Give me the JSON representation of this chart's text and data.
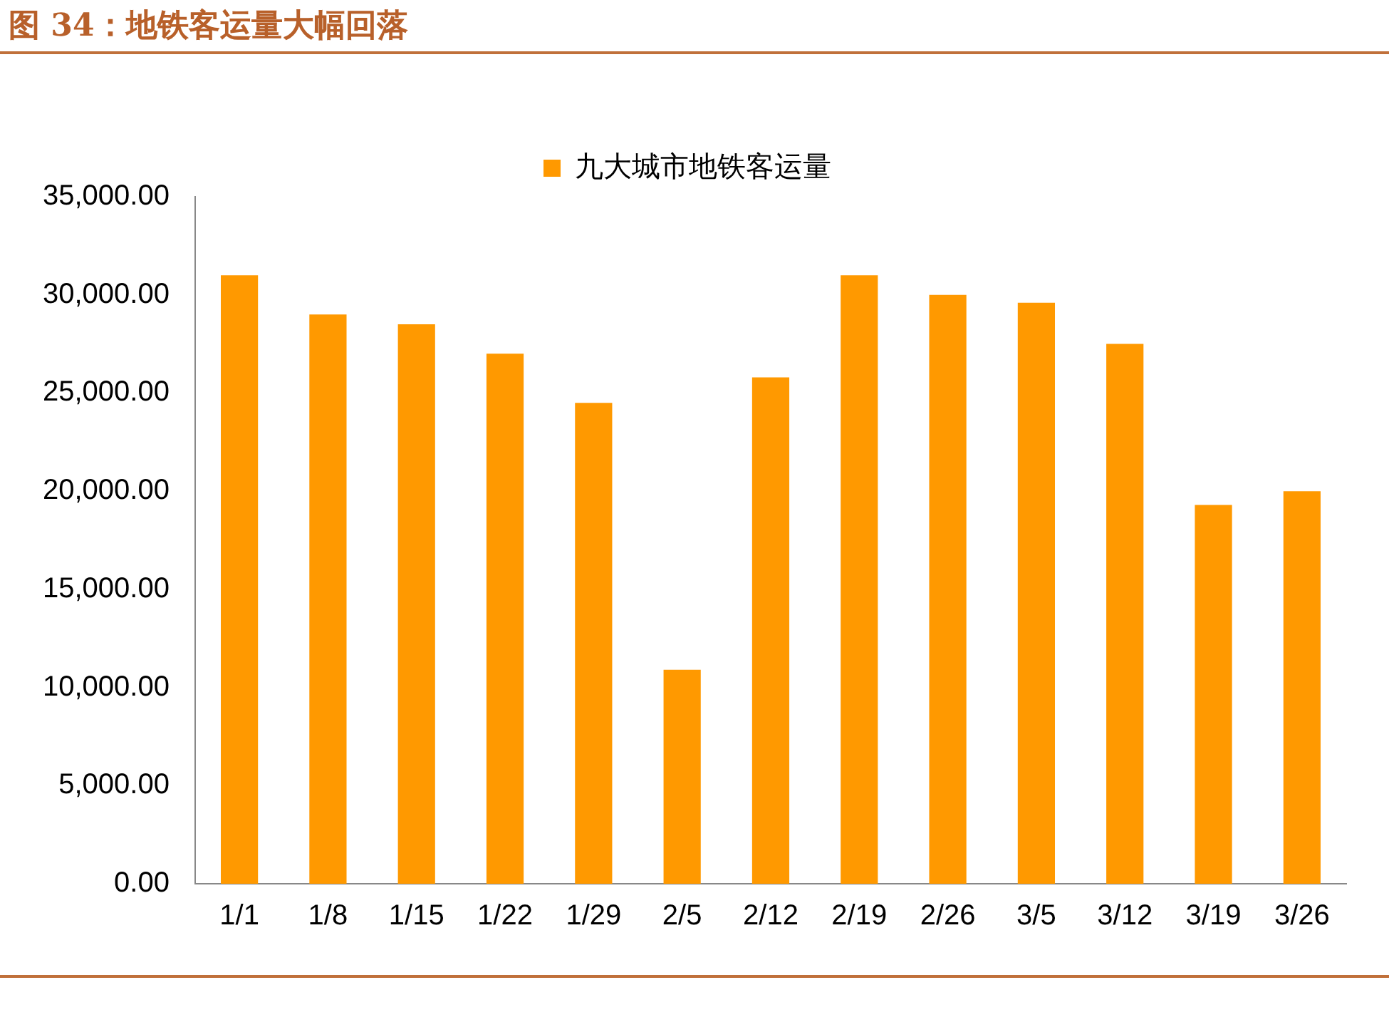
{
  "chart_data": {
    "type": "bar",
    "title": "图 34：地铁客运量大幅回落",
    "categories": [
      "1/1",
      "1/8",
      "1/15",
      "1/22",
      "1/29",
      "2/5",
      "2/12",
      "2/19",
      "2/26",
      "3/5",
      "3/12",
      "3/19",
      "3/26"
    ],
    "series": [
      {
        "name": "九大城市地铁客运量",
        "color": "#ff9900",
        "values": [
          31000,
          29000,
          28500,
          27000,
          24500,
          10900,
          25800,
          31000,
          30000,
          29600,
          27500,
          19300,
          20000
        ]
      }
    ],
    "ylim": [
      0,
      35000
    ],
    "yticks": [
      {
        "value": 0,
        "label": "0.00"
      },
      {
        "value": 5000,
        "label": "5,000.00"
      },
      {
        "value": 10000,
        "label": "10,000.00"
      },
      {
        "value": 15000,
        "label": "15,000.00"
      },
      {
        "value": 20000,
        "label": "20,000.00"
      },
      {
        "value": 25000,
        "label": "25,000.00"
      },
      {
        "value": 30000,
        "label": "30,000.00"
      },
      {
        "value": 35000,
        "label": "35,000.00"
      }
    ],
    "grid": false,
    "legend": "top"
  }
}
